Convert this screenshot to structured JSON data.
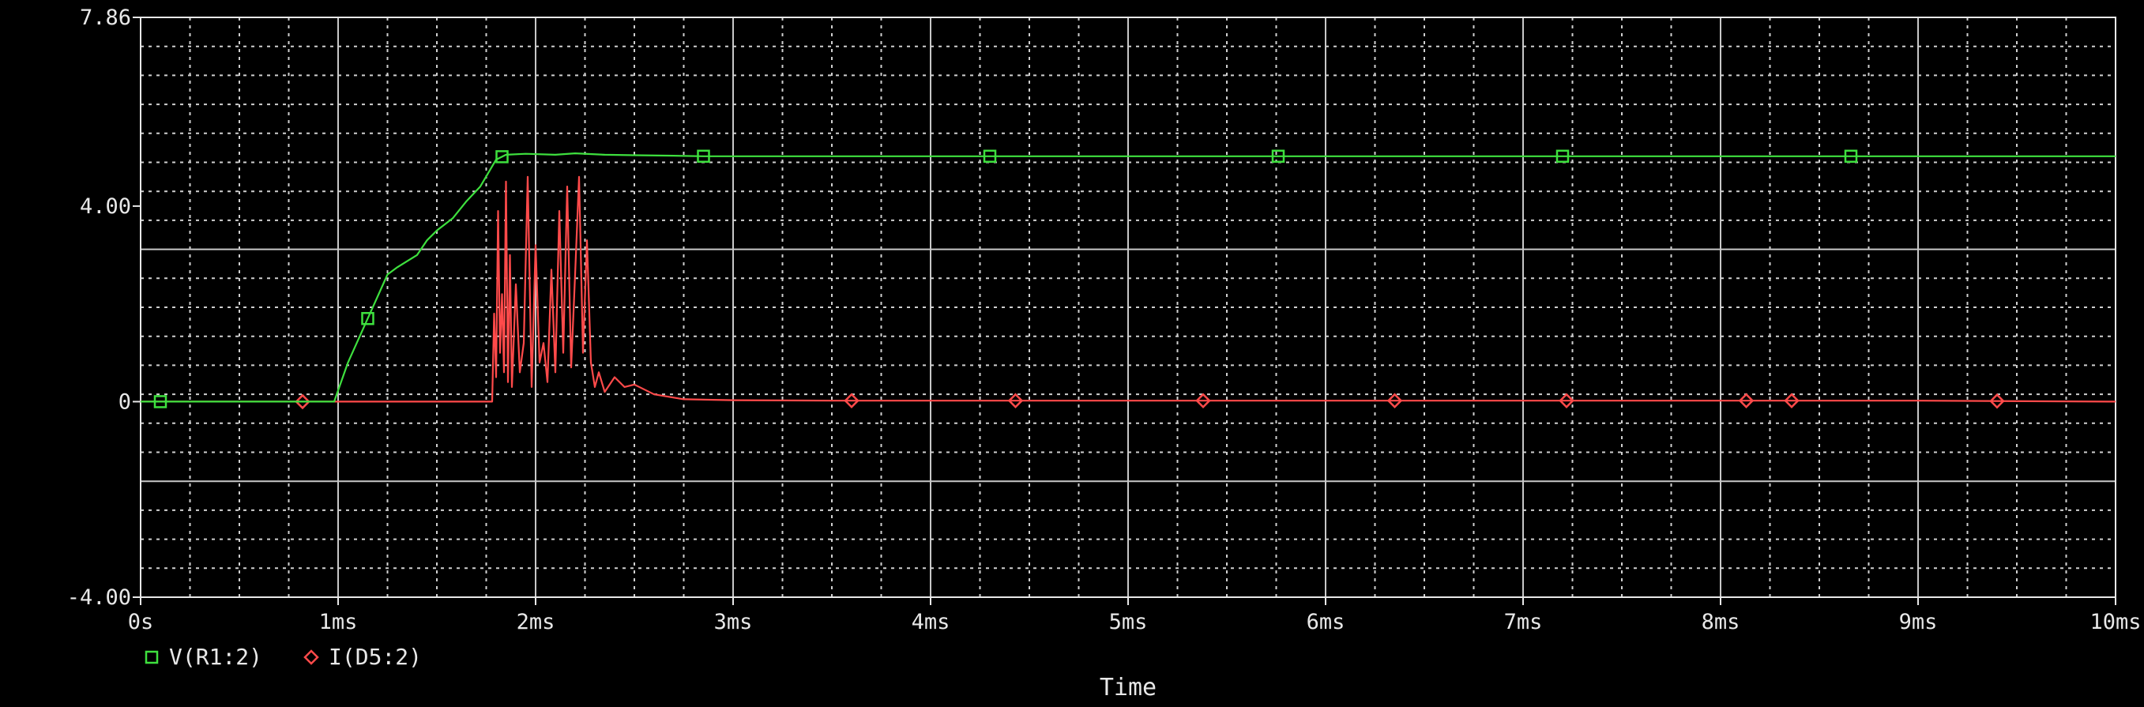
{
  "chart_data": {
    "type": "line",
    "xlabel": "Time",
    "ylabel": "",
    "xlim": [
      0,
      10
    ],
    "ylim": [
      -4.0,
      7.86
    ],
    "grid": true,
    "legend_position": "bottom-left",
    "x_ticks": [
      {
        "v": 0,
        "label": "0s"
      },
      {
        "v": 1,
        "label": "1ms"
      },
      {
        "v": 2,
        "label": "2ms"
      },
      {
        "v": 3,
        "label": "3ms"
      },
      {
        "v": 4,
        "label": "4ms"
      },
      {
        "v": 5,
        "label": "5ms"
      },
      {
        "v": 6,
        "label": "6ms"
      },
      {
        "v": 7,
        "label": "7ms"
      },
      {
        "v": 8,
        "label": "8ms"
      },
      {
        "v": 9,
        "label": "9ms"
      },
      {
        "v": 10,
        "label": "10ms"
      }
    ],
    "y_ticks": [
      {
        "v": 7.86,
        "label": "7.86"
      },
      {
        "v": 4.0,
        "label": "4.00"
      },
      {
        "v": 0,
        "label": "0"
      },
      {
        "v": -4.0,
        "label": "-4.00"
      }
    ],
    "series": [
      {
        "name": "V(R1:2)",
        "color": "#3ee03e",
        "marker": "square",
        "x": [
          0,
          0.98,
          1.05,
          1.15,
          1.25,
          1.3,
          1.4,
          1.45,
          1.5,
          1.58,
          1.65,
          1.72,
          1.8,
          1.85,
          1.95,
          2.1,
          2.2,
          2.35,
          2.5,
          2.7,
          2.85,
          3.0,
          4.0,
          5.0,
          6.0,
          7.0,
          8.0,
          9.0,
          10.0
        ],
        "values": [
          0,
          0,
          0.8,
          1.7,
          2.6,
          2.75,
          3.0,
          3.3,
          3.5,
          3.75,
          4.1,
          4.4,
          4.95,
          5.05,
          5.07,
          5.05,
          5.08,
          5.05,
          5.04,
          5.03,
          5.02,
          5.02,
          5.02,
          5.02,
          5.02,
          5.02,
          5.02,
          5.02,
          5.02
        ],
        "markers_x": [
          0.1,
          1.15,
          1.83,
          2.85,
          4.3,
          5.76,
          7.2,
          8.66
        ]
      },
      {
        "name": "I(D5:2)",
        "color": "#ff4a4a",
        "marker": "diamond",
        "x": [
          0,
          1.78,
          1.79,
          1.8,
          1.81,
          1.82,
          1.83,
          1.84,
          1.85,
          1.86,
          1.87,
          1.88,
          1.9,
          1.92,
          1.94,
          1.96,
          1.98,
          2.0,
          2.02,
          2.04,
          2.06,
          2.08,
          2.1,
          2.12,
          2.14,
          2.16,
          2.18,
          2.2,
          2.22,
          2.24,
          2.26,
          2.28,
          2.3,
          2.32,
          2.35,
          2.4,
          2.45,
          2.5,
          2.6,
          2.75,
          3.0,
          3.5,
          4.0,
          5.0,
          6.0,
          7.0,
          8.0,
          9.0,
          10.0
        ],
        "values": [
          0,
          0,
          1.8,
          0.5,
          3.9,
          1.0,
          2.2,
          0.6,
          4.5,
          0.4,
          3.0,
          0.3,
          2.4,
          0.6,
          1.2,
          4.6,
          0.3,
          3.2,
          0.8,
          1.2,
          0.4,
          2.7,
          0.6,
          3.9,
          1.0,
          4.4,
          0.7,
          2.6,
          4.6,
          1.0,
          3.3,
          0.8,
          0.3,
          0.6,
          0.2,
          0.5,
          0.3,
          0.35,
          0.15,
          0.05,
          0.03,
          0.02,
          0.02,
          0.02,
          0.02,
          0.02,
          0.02,
          0.02,
          0
        ],
        "markers_x": [
          0.82,
          3.6,
          4.43,
          5.38,
          6.35,
          7.22,
          8.13,
          8.36,
          9.4
        ]
      }
    ]
  }
}
